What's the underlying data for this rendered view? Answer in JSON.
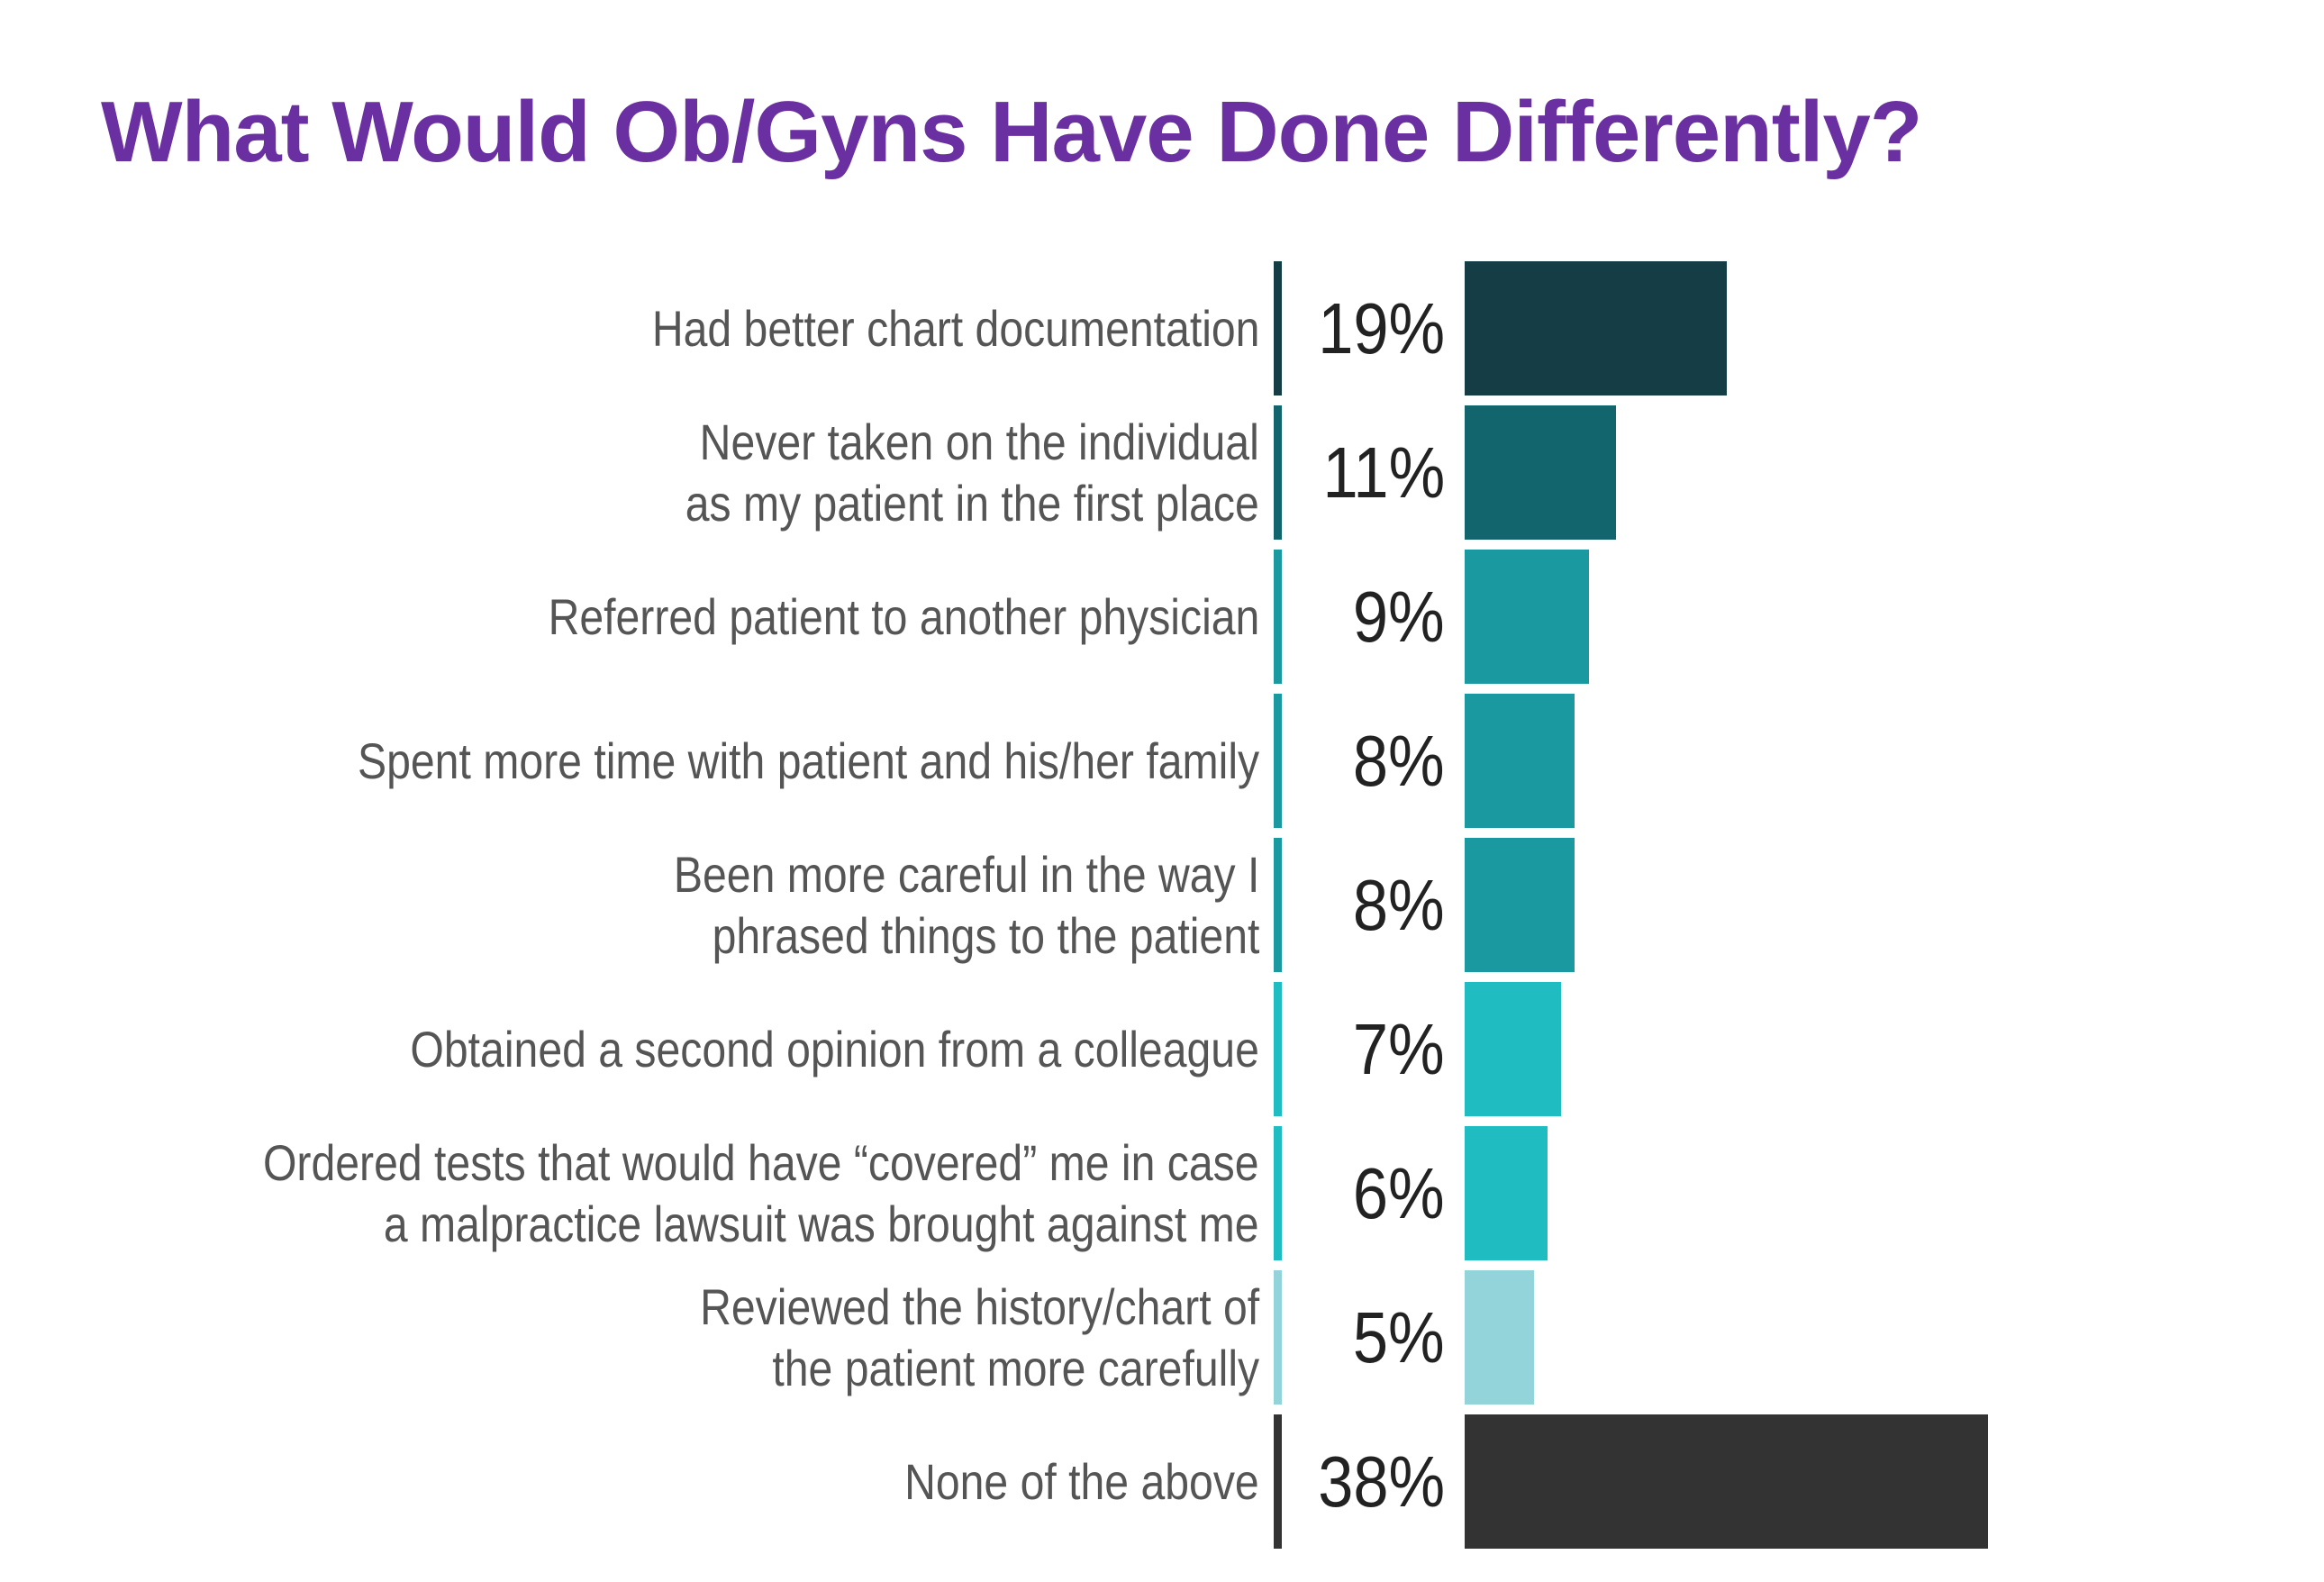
{
  "chart_data": {
    "type": "bar",
    "orientation": "horizontal",
    "title": "What Would Ob/Gyns Have Done Differently?",
    "xlabel": "",
    "ylabel": "",
    "grid": false,
    "categories": [
      [
        "Had better chart documentation"
      ],
      [
        "Never taken on the individual",
        "as my patient in the first place"
      ],
      [
        "Referred patient to another physician"
      ],
      [
        "Spent more time with patient and his/her family"
      ],
      [
        "Been more careful in the way I",
        "phrased things to the patient"
      ],
      [
        "Obtained a second opinion from a colleague"
      ],
      [
        "Ordered tests that would have “covered” me in case",
        "a malpractice lawsuit was brought against me"
      ],
      [
        "Reviewed the history/chart of",
        "the patient more carefully"
      ],
      [
        "None of the above"
      ]
    ],
    "values": [
      19,
      11,
      9,
      8,
      8,
      7,
      6,
      5,
      38
    ],
    "value_labels": [
      "19%",
      "11%",
      "9%",
      "8%",
      "8%",
      "7%",
      "6%",
      "5%",
      "38%"
    ],
    "colors": [
      "#143d45",
      "#12646d",
      "#1a9aa0",
      "#1a9aa0",
      "#1a9aa0",
      "#1fbcc1",
      "#1fbcc1",
      "#92d4da",
      "#333333"
    ],
    "title_color": "#6a2fa0"
  }
}
